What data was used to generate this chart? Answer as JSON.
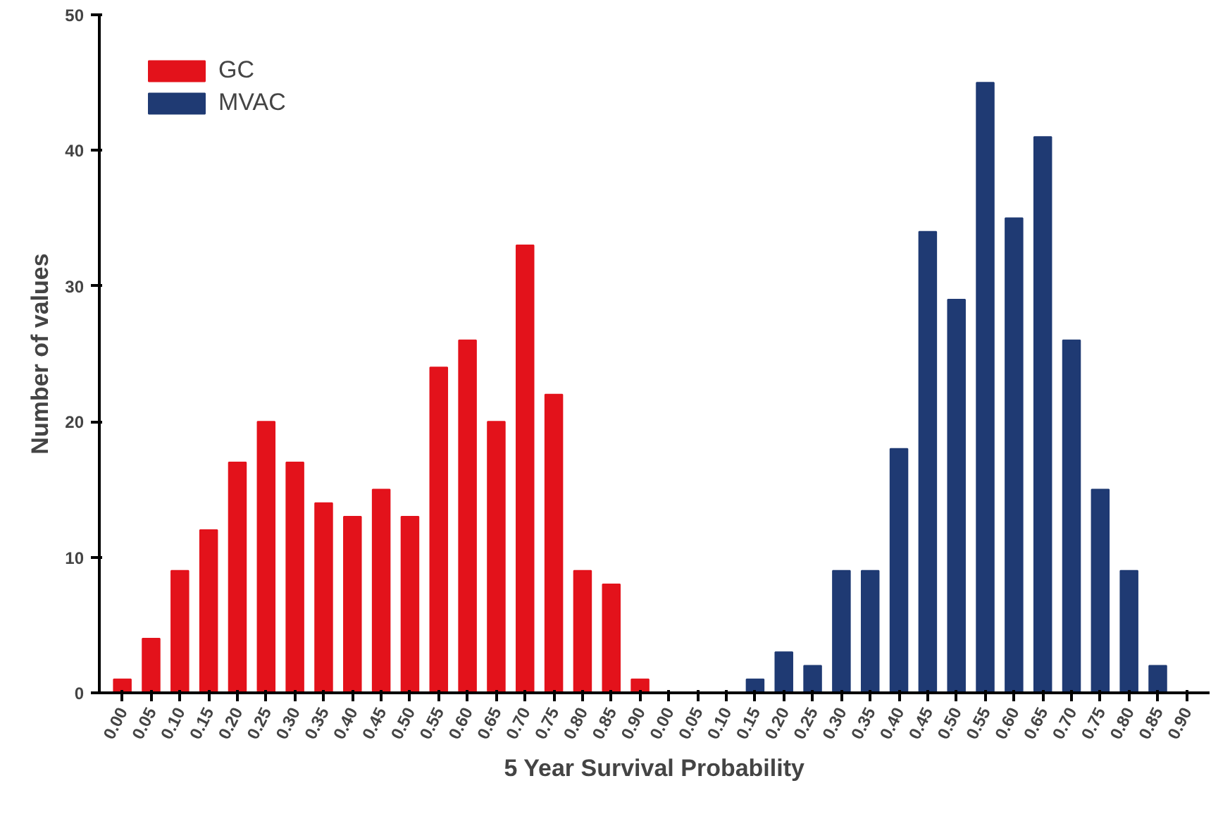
{
  "chart_data": {
    "type": "bar",
    "xlabel": "5 Year Survival Probability",
    "ylabel": "Number of values",
    "categories": [
      "0.00",
      "0.05",
      "0.10",
      "0.15",
      "0.20",
      "0.25",
      "0.30",
      "0.35",
      "0.40",
      "0.45",
      "0.50",
      "0.55",
      "0.60",
      "0.65",
      "0.70",
      "0.75",
      "0.80",
      "0.85",
      "0.90",
      "0.00",
      "0.05",
      "0.10",
      "0.15",
      "0.20",
      "0.25",
      "0.30",
      "0.35",
      "0.40",
      "0.45",
      "0.50",
      "0.55",
      "0.60",
      "0.65",
      "0.70",
      "0.75",
      "0.80",
      "0.85",
      "0.90"
    ],
    "series": [
      {
        "name": "GC",
        "color": "#e3121b",
        "values": [
          1,
          4,
          9,
          12,
          17,
          20,
          17,
          14,
          13,
          15,
          13,
          24,
          26,
          20,
          33,
          22,
          9,
          8,
          1,
          null,
          null,
          null,
          null,
          null,
          null,
          null,
          null,
          null,
          null,
          null,
          null,
          null,
          null,
          null,
          null,
          null,
          null,
          null
        ]
      },
      {
        "name": "MVAC",
        "color": "#1f3a73",
        "values": [
          null,
          null,
          null,
          null,
          null,
          null,
          null,
          null,
          null,
          null,
          null,
          null,
          null,
          null,
          null,
          null,
          null,
          null,
          null,
          0,
          0,
          0,
          1,
          3,
          2,
          9,
          9,
          18,
          34,
          29,
          45,
          35,
          41,
          26,
          15,
          9,
          2,
          0
        ]
      }
    ],
    "ylim": [
      0,
      50
    ],
    "yticks": [
      0,
      10,
      20,
      30,
      40,
      50
    ],
    "grid": false,
    "legend": "top left"
  }
}
